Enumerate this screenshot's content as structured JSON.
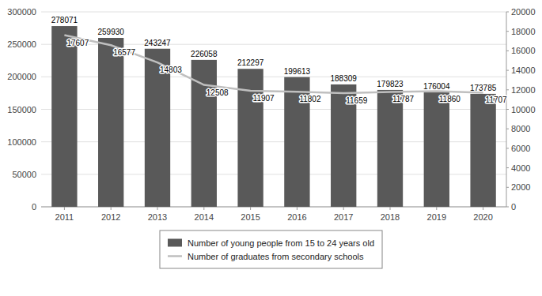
{
  "chart_data": {
    "type": "bar",
    "categories": [
      "2011",
      "2012",
      "2013",
      "2014",
      "2015",
      "2016",
      "2017",
      "2018",
      "2019",
      "2020"
    ],
    "series": [
      {
        "name": "Number of young people from 15 to 24 years old",
        "type": "bar",
        "color": "#595959",
        "values": [
          278071,
          259930,
          243247,
          226058,
          212297,
          199613,
          188309,
          179823,
          176004,
          173785
        ]
      },
      {
        "name": "Number of graduates from secondary schools",
        "type": "line",
        "color": "#bfbfbf",
        "axis": "y2",
        "values": [
          17607,
          16577,
          14803,
          12508,
          11907,
          11802,
          11659,
          11787,
          11860,
          11707
        ]
      }
    ],
    "ylim": [
      0,
      300000
    ],
    "yticks": [
      0,
      50000,
      100000,
      150000,
      200000,
      250000,
      300000
    ],
    "y2lim": [
      0,
      20000
    ],
    "y2ticks": [
      0,
      2000,
      4000,
      6000,
      8000,
      10000,
      12000,
      14000,
      16000,
      18000,
      20000
    ],
    "grid": true,
    "data_labels": true,
    "legend": "bottom"
  }
}
